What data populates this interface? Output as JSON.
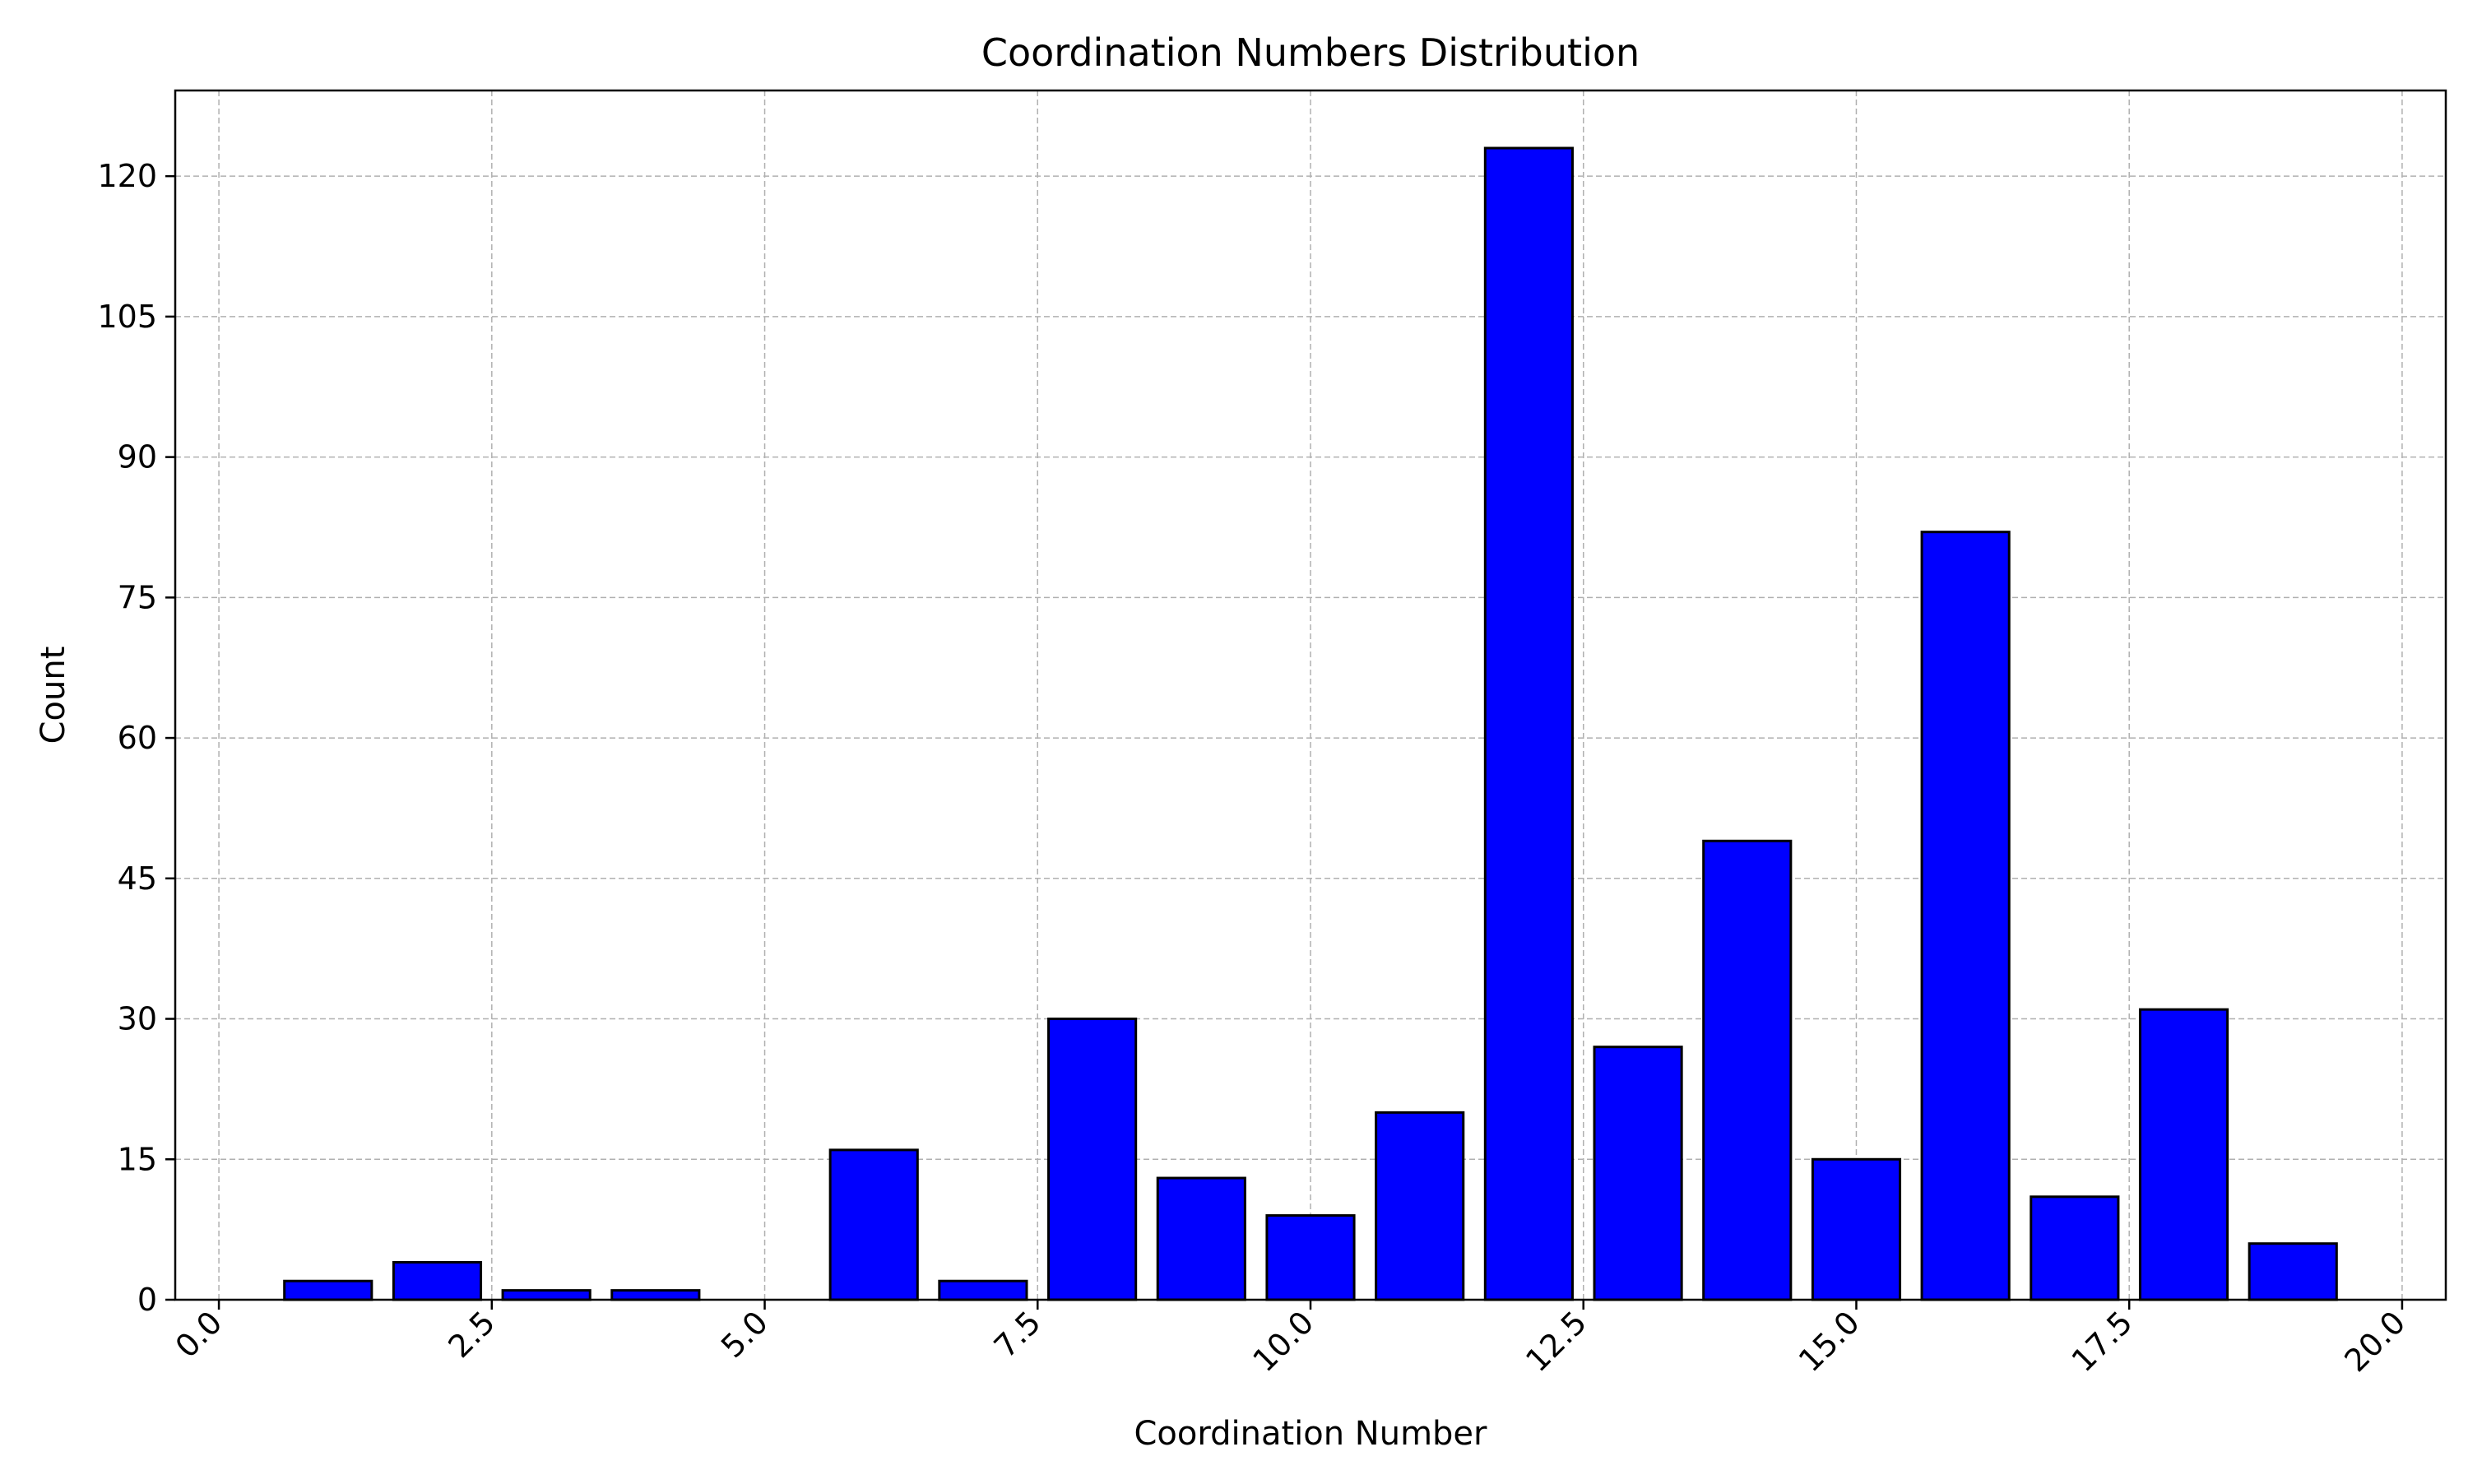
{
  "chart_data": {
    "type": "bar",
    "title": "Coordination Numbers Distribution",
    "xlabel": "Coordination Number",
    "ylabel": "Count",
    "x": [
      1,
      2,
      3,
      4,
      5,
      6,
      7,
      8,
      9,
      10,
      11,
      12,
      13,
      14,
      15,
      16,
      17,
      18,
      19
    ],
    "values": [
      2,
      4,
      1,
      1,
      0,
      16,
      2,
      30,
      13,
      9,
      20,
      123,
      27,
      49,
      15,
      82,
      11,
      31,
      6
    ],
    "bar_width": 0.8,
    "xlim": [
      -0.4,
      20.4
    ],
    "ylim": [
      0,
      129.15
    ],
    "xticks": [
      0.0,
      2.5,
      5.0,
      7.5,
      10.0,
      12.5,
      15.0,
      17.5,
      20.0
    ],
    "xtick_labels": [
      "0.0",
      "2.5",
      "5.0",
      "7.5",
      "10.0",
      "12.5",
      "15.0",
      "17.5",
      "20.0"
    ],
    "yticks": [
      0,
      15,
      30,
      45,
      60,
      75,
      90,
      105,
      120
    ],
    "ytick_labels": [
      "0",
      "15",
      "30",
      "45",
      "60",
      "75",
      "90",
      "105",
      "120"
    ],
    "grid": true,
    "bar_color": "#0000ff",
    "edge_color": "#000000",
    "grid_color": "#b0b0b0"
  }
}
